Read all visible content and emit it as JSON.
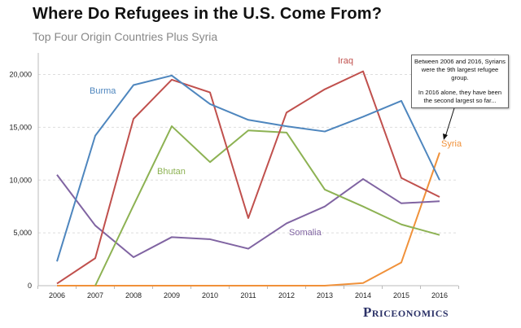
{
  "chart_data": {
    "type": "line",
    "title": "Where Do Refugees in the U.S. Come From?",
    "subtitle": "Top Four Origin Countries Plus Syria",
    "x": [
      2006,
      2007,
      2008,
      2009,
      2010,
      2011,
      2012,
      2013,
      2014,
      2015,
      2016
    ],
    "ylim": [
      0,
      22000
    ],
    "yticks": [
      0,
      5000,
      10000,
      15000,
      20000
    ],
    "ytick_labels": [
      "0",
      "5,000",
      "10,000",
      "15,000",
      "20,000"
    ],
    "grid": "horizontal dashed",
    "legend": "inline labels",
    "series": [
      {
        "name": "Burma",
        "color": "#4e86be",
        "values": [
          2300,
          14200,
          19000,
          19900,
          17200,
          15700,
          15100,
          14600,
          16000,
          17500,
          10000
        ]
      },
      {
        "name": "Iraq",
        "color": "#c0504d",
        "values": [
          200,
          2600,
          15800,
          19500,
          18300,
          6400,
          16400,
          18600,
          20300,
          10200,
          8400
        ]
      },
      {
        "name": "Bhutan",
        "color": "#8db253",
        "values": [
          null,
          0,
          7600,
          15100,
          11700,
          14700,
          14500,
          9100,
          7500,
          5800,
          4800
        ]
      },
      {
        "name": "Somalia",
        "color": "#8064a2",
        "values": [
          10500,
          5700,
          2700,
          4600,
          4400,
          3500,
          5900,
          7500,
          10100,
          7800,
          8000
        ]
      },
      {
        "name": "Syria",
        "color": "#f0913a",
        "values": [
          0,
          0,
          0,
          0,
          0,
          0,
          0,
          0,
          250,
          2200,
          12600
        ]
      }
    ],
    "annotation": {
      "line1": "Between 2006 and 2016, Syrians were the 9th largest refugee group.",
      "line2": "In 2016 alone, they have been the second largest so far..."
    }
  },
  "branding": {
    "logo": "Priceonomics"
  }
}
